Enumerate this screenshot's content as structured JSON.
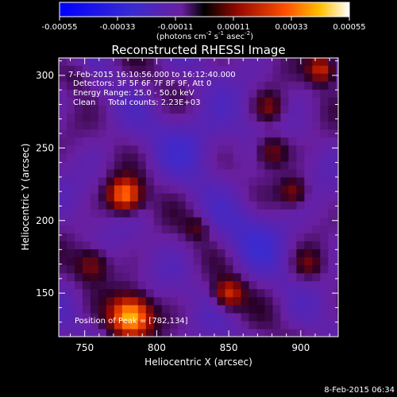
{
  "chart_data": {
    "type": "heatmap",
    "title": "Reconstructed RHESSI Image",
    "xlabel": "Heliocentric X (arcsec)",
    "ylabel": "Heliocentric Y (arcsec)",
    "xlim": [
      732,
      926
    ],
    "ylim": [
      120,
      312
    ],
    "xticks": [
      750,
      800,
      850,
      900
    ],
    "yticks": [
      150,
      200,
      250,
      300
    ],
    "colorbar": {
      "ticks": [
        "-0.00055",
        "-0.00033",
        "-0.00011",
        "0.00011",
        "0.00033",
        "0.00055"
      ],
      "range": [
        -0.00055,
        0.00055
      ],
      "label_html": "(photons cm<tspan font-size='7' dy='-5'>-2</tspan><tspan dy='5'> s</tspan><tspan font-size='7' dy='-5'>-1</tspan><tspan dy='5'> asec</tspan><tspan font-size='7' dy='-5'>-2</tspan><tspan dy='5'>)</tspan>"
    },
    "annotations": [
      "7-Feb-2015 16:10:56.000 to 16:12:40.000",
      "Detectors: 3F 5F 6F 7F 8F 9F, Att 0",
      "Energy Range: 25.0 - 50.0 keV",
      "Clean     Total counts: 2.23E+03"
    ],
    "peak_label": "Position of Peak = [782,134]",
    "sources": [
      {
        "x": 782,
        "y": 134,
        "peak": 0.00055,
        "sigma": 10
      },
      {
        "x": 778,
        "y": 218,
        "peak": 0.00045,
        "sigma": 8
      },
      {
        "x": 850,
        "y": 150,
        "peak": 0.0003,
        "sigma": 7
      },
      {
        "x": 755,
        "y": 170,
        "peak": 0.0002,
        "sigma": 8
      },
      {
        "x": 915,
        "y": 305,
        "peak": 0.00032,
        "sigma": 7
      },
      {
        "x": 880,
        "y": 248,
        "peak": 0.00022,
        "sigma": 8
      },
      {
        "x": 895,
        "y": 220,
        "peak": 0.0002,
        "sigma": 7
      },
      {
        "x": 878,
        "y": 278,
        "peak": 0.00018,
        "sigma": 7
      },
      {
        "x": 905,
        "y": 170,
        "peak": 0.00015,
        "sigma": 7
      },
      {
        "x": 828,
        "y": 195,
        "peak": 0.00012,
        "sigma": 6
      },
      {
        "x": 745,
        "y": 300,
        "peak": 0.0001,
        "sigma": 8
      }
    ],
    "background": -0.0001
  },
  "footer": {
    "date": "8-Feb-2015 06:34"
  }
}
